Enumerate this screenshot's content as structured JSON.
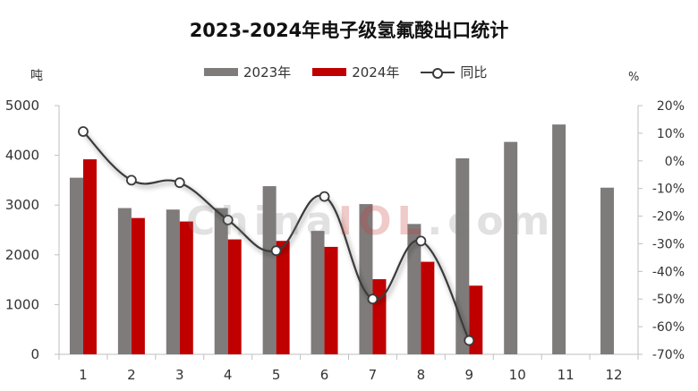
{
  "chart_data": {
    "type": "bar",
    "title": "2023-2024年电子级氢氟酸出口统计",
    "ylabel": "吨",
    "y2label": "%",
    "categories": [
      "1",
      "2",
      "3",
      "4",
      "5",
      "6",
      "7",
      "8",
      "9",
      "10",
      "11",
      "12"
    ],
    "series": [
      {
        "name": "2023年",
        "type": "bar",
        "color": "#7f7b7b",
        "values": [
          3550,
          2940,
          2910,
          2940,
          3380,
          2480,
          3020,
          2620,
          3940,
          4270,
          4620,
          3350
        ]
      },
      {
        "name": "2024年",
        "type": "bar",
        "color": "#c00000",
        "values": [
          3920,
          2740,
          2670,
          2310,
          2280,
          2160,
          1510,
          1860,
          1380,
          null,
          null,
          null
        ]
      },
      {
        "name": "同比",
        "type": "line",
        "axis": "right",
        "color": "#3b3b3b",
        "values": [
          10.6,
          -7,
          -7.9,
          -21.4,
          -32.5,
          -12.9,
          -50,
          -29,
          -65,
          null,
          null,
          null
        ]
      }
    ],
    "ylim": [
      0,
      5000
    ],
    "yticks": [
      "0",
      "1000",
      "2000",
      "3000",
      "4000",
      "5000"
    ],
    "y2lim": [
      -70,
      20
    ],
    "y2ticks": [
      "20%",
      "10%",
      "0%",
      "-10%",
      "-20%",
      "-30%",
      "-40%",
      "-50%",
      "-60%",
      "-70%"
    ],
    "legend_position": "top-center",
    "grid": false
  },
  "watermark": {
    "pre": "China",
    "hl": "IOL",
    "post": ".com"
  }
}
